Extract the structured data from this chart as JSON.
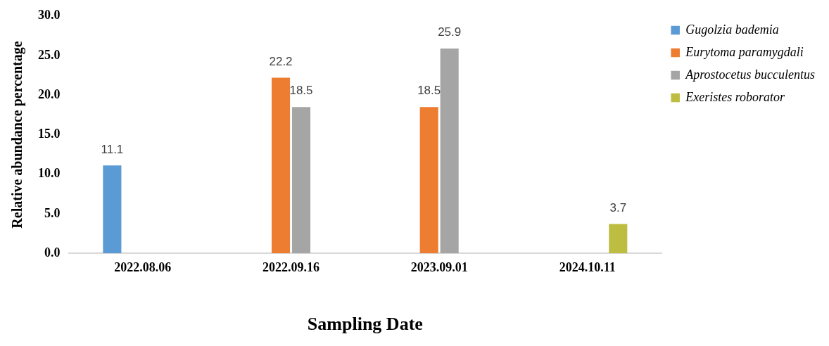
{
  "chart_data": {
    "type": "bar",
    "xlabel": "Sampling Date",
    "ylabel": "Relative abundance percentage",
    "categories": [
      "2022.08.06",
      "2022.09.16",
      "2023.09.01",
      "2024.10.11"
    ],
    "series": [
      {
        "name": "Gugolzia bademia",
        "color": "#5b9bd5",
        "values": [
          11.1,
          null,
          null,
          null
        ]
      },
      {
        "name": "Eurytoma paramygdali",
        "color": "#ed7d31",
        "values": [
          null,
          22.2,
          18.5,
          null
        ]
      },
      {
        "name": "Aprostocetus bucculentus",
        "color": "#a5a5a5",
        "values": [
          null,
          18.5,
          25.9,
          null
        ]
      },
      {
        "name": "Exeristes roborator",
        "color": "#bdbd42",
        "values": [
          null,
          null,
          null,
          3.7
        ]
      }
    ],
    "ylim": [
      0,
      30
    ],
    "yticks": [
      {
        "value": 0,
        "label": "0.0"
      },
      {
        "value": 5,
        "label": "5.0"
      },
      {
        "value": 10,
        "label": "10.0"
      },
      {
        "value": 15,
        "label": "15.0"
      },
      {
        "value": 20,
        "label": "20.0"
      },
      {
        "value": 25,
        "label": "25.0"
      },
      {
        "value": 30,
        "label": "30.0"
      }
    ],
    "grid": false,
    "legend": "right",
    "data_labels": true
  }
}
